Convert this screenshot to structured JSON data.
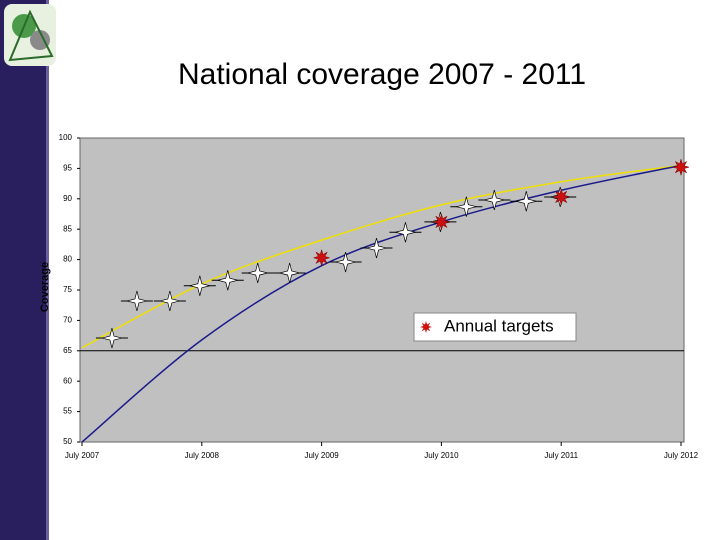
{
  "chart_data": {
    "type": "line",
    "title": "National coverage 2007 - 2011",
    "y_label": "Coverage",
    "xlim": [
      0,
      60
    ],
    "ylim": [
      50,
      100
    ],
    "xticks": [
      {
        "value": 0,
        "label": "July 2007"
      },
      {
        "value": 12,
        "label": "July 2008"
      },
      {
        "value": 24,
        "label": "July 2009"
      },
      {
        "value": 36,
        "label": "July 2010"
      },
      {
        "value": 48,
        "label": "July 2011"
      },
      {
        "value": 60,
        "label": "July 2012"
      }
    ],
    "yticks": [
      50,
      55,
      60,
      65,
      70,
      75,
      80,
      85,
      90,
      95,
      100
    ],
    "reference_lines": [
      65
    ],
    "plot_background": "#c0c0c0",
    "legend_position": "center-right",
    "series": [
      {
        "color": "#f0e000",
        "mode": "line",
        "x": [
          0,
          12,
          24,
          36,
          48,
          60
        ],
        "values": [
          65.5,
          76,
          83.2,
          89,
          92.8,
          95.5
        ]
      },
      {
        "color": "#1a1a8c",
        "mode": "line",
        "x": [
          0,
          12,
          24,
          36,
          48,
          60
        ],
        "values": [
          50,
          66.8,
          79,
          86.2,
          91.4,
          95.5
        ]
      },
      {
        "color": "#ffffff",
        "mode": "star",
        "x": [
          3,
          5.5,
          8.8,
          11.8,
          14.6,
          17.6,
          20.8,
          26.4,
          29.5,
          32.4,
          35.9,
          38.5,
          41.3,
          44.5,
          47.9
        ],
        "values": [
          67.1,
          73.2,
          73.2,
          75.7,
          76.6,
          77.8,
          77.8,
          79.6,
          81.9,
          84.5,
          86.2,
          88.7,
          89.8,
          89.6,
          90.3
        ]
      },
      {
        "name": "Annual targets",
        "color": "#cc1010",
        "mode": "asterisk",
        "x": [
          24,
          36,
          48,
          60
        ],
        "values": [
          80.3,
          86.2,
          90.3,
          95.2
        ]
      }
    ]
  }
}
